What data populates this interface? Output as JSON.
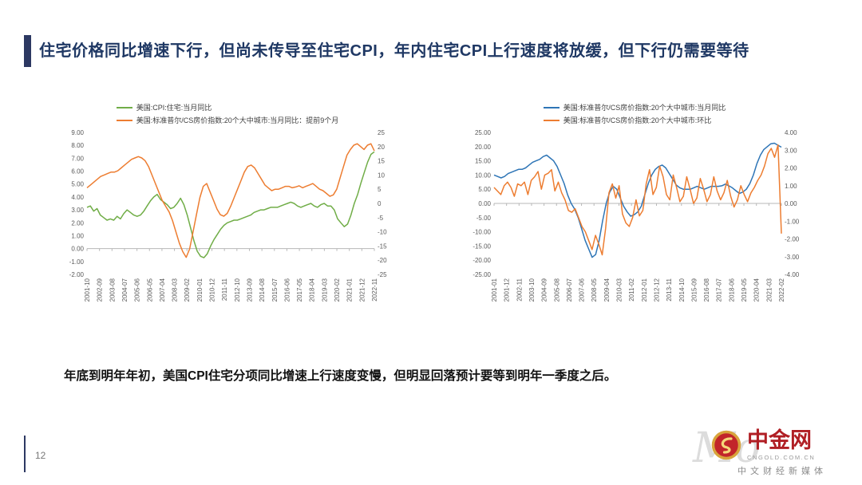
{
  "title": "住宅价格同比增速下行，但尚未传导至住宅CPI，年内住宅CPI上行速度将放缓，但下行仍需要等待",
  "note": "年底到明年年初，美国CPI住宅分项同比增速上行速度变慢，但明显回落预计要等到明年一季度之后。",
  "page_number": "12",
  "logo": {
    "watermark": "Mo",
    "brand": "中金网",
    "domain": "CNGOLD.COM.CN",
    "tagline": "中文财经新媒体"
  },
  "colors": {
    "accent_navy": "#2C3862",
    "title_blue": "#1F3864",
    "green": "#70AD47",
    "orange": "#ED7D31",
    "blue": "#2E75B6",
    "brand_red": "#B01E24",
    "logo_gold": "#D8A43C"
  },
  "chart_data": [
    {
      "type": "line",
      "title": "",
      "legend": [
        {
          "label": "美国:CPI:住宅:当月同比",
          "color": "#70AD47",
          "axis": "left"
        },
        {
          "label": "美国:标准普尔/CS房价指数:20个大中城市:当月同比：提前9个月",
          "color": "#ED7D31",
          "axis": "right"
        }
      ],
      "left_axis": {
        "min": -2,
        "max": 9,
        "ticks": [
          "9.00",
          "8.00",
          "7.00",
          "6.00",
          "5.00",
          "4.00",
          "3.00",
          "2.00",
          "1.00",
          "0.00",
          "-1.00",
          "-2.00"
        ]
      },
      "right_axis": {
        "min": -25,
        "max": 25,
        "ticks": [
          "25",
          "20",
          "15",
          "10",
          "5",
          "0",
          "-5",
          "-10",
          "-15",
          "-20",
          "-25"
        ]
      },
      "x_labels": [
        "2001-10",
        "2002-09",
        "2003-08",
        "2004-07",
        "2005-06",
        "2006-05",
        "2007-04",
        "2008-03",
        "2009-02",
        "2010-01",
        "2010-12",
        "2011-11",
        "2012-10",
        "2013-09",
        "2014-08",
        "2015-07",
        "2016-06",
        "2017-05",
        "2018-04",
        "2019-03",
        "2020-02",
        "2021-01",
        "2021-12",
        "2022-11"
      ],
      "series": [
        {
          "name": "美国:CPI:住宅:当月同比",
          "axis": "left",
          "color": "#70AD47",
          "values": [
            3.2,
            3.3,
            2.9,
            3.1,
            2.6,
            2.4,
            2.2,
            2.3,
            2.2,
            2.5,
            2.3,
            2.7,
            3.0,
            2.8,
            2.6,
            2.5,
            2.6,
            2.9,
            3.3,
            3.7,
            4.0,
            4.2,
            3.8,
            3.6,
            3.4,
            3.1,
            3.2,
            3.5,
            3.9,
            3.4,
            2.6,
            1.6,
            0.6,
            -0.2,
            -0.6,
            -0.7,
            -0.4,
            0.2,
            0.7,
            1.1,
            1.5,
            1.8,
            2.0,
            2.1,
            2.2,
            2.2,
            2.3,
            2.4,
            2.5,
            2.6,
            2.8,
            2.9,
            3.0,
            3.0,
            3.1,
            3.2,
            3.2,
            3.2,
            3.3,
            3.4,
            3.5,
            3.6,
            3.5,
            3.3,
            3.2,
            3.3,
            3.4,
            3.5,
            3.3,
            3.2,
            3.4,
            3.5,
            3.3,
            3.3,
            3.0,
            2.3,
            2.0,
            1.7,
            1.9,
            2.6,
            3.5,
            4.2,
            5.1,
            5.9,
            6.7,
            7.3,
            7.5
          ]
        },
        {
          "name": "美国:标准普尔/CS房价指数:20个大中城市:当月同比：提前9个月",
          "axis": "right",
          "color": "#ED7D31",
          "values": [
            5.5,
            6.5,
            7.5,
            8.5,
            9.5,
            10,
            10.5,
            11,
            11,
            11.5,
            12.5,
            13.5,
            14.5,
            15.5,
            16,
            16.5,
            16,
            15,
            13,
            10,
            7,
            4,
            1,
            -1,
            -3,
            -6,
            -10,
            -14,
            -17,
            -19,
            -16,
            -10,
            -4,
            2,
            6,
            7,
            4,
            1,
            -2,
            -4,
            -4.5,
            -3.5,
            -1,
            2,
            5,
            8,
            11,
            13,
            13.5,
            12.5,
            10.5,
            8.5,
            6.5,
            5.5,
            4.5,
            5,
            5,
            5.5,
            6,
            6,
            5.5,
            5.8,
            6.2,
            5.5,
            6,
            6.5,
            7,
            6,
            5,
            4.5,
            3.5,
            2.5,
            3,
            5,
            9,
            13,
            17,
            19,
            20.5,
            21,
            20,
            19,
            20.5,
            21,
            18.5
          ]
        }
      ]
    },
    {
      "type": "line",
      "title": "",
      "legend": [
        {
          "label": "美国:标准普尔/CS房价指数:20个大中城市:当月同比",
          "color": "#2E75B6",
          "axis": "left"
        },
        {
          "label": "美国:标准普尔/CS房价指数:20个大中城市:环比",
          "color": "#ED7D31",
          "axis": "right"
        }
      ],
      "left_axis": {
        "min": -25,
        "max": 25,
        "ticks": [
          "25.00",
          "20.00",
          "15.00",
          "10.00",
          "5.00",
          "0.00",
          "-5.00",
          "-10.00",
          "-15.00",
          "-20.00",
          "-25.00"
        ]
      },
      "right_axis": {
        "min": -4,
        "max": 4,
        "ticks": [
          "4.00",
          "3.00",
          "2.00",
          "1.00",
          "0.00",
          "-1.00",
          "-2.00",
          "-3.00",
          "-4.00"
        ]
      },
      "x_labels": [
        "2001-01",
        "2001-12",
        "2002-11",
        "2003-10",
        "2004-09",
        "2005-08",
        "2006-07",
        "2007-06",
        "2008-05",
        "2009-04",
        "2010-03",
        "2011-02",
        "2012-01",
        "2012-12",
        "2013-11",
        "2014-10",
        "2015-09",
        "2016-08",
        "2017-07",
        "2018-06",
        "2019-05",
        "2020-04",
        "2021-03",
        "2022-02"
      ],
      "series": [
        {
          "name": "美国:标准普尔/CS房价指数:20个大中城市:当月同比",
          "axis": "left",
          "color": "#2E75B6",
          "values": [
            10,
            9.5,
            9,
            9.5,
            10.5,
            11,
            11.5,
            12,
            12,
            12.5,
            13.5,
            14.5,
            15,
            15.5,
            16.5,
            17,
            16,
            15,
            13,
            10,
            7,
            3,
            0,
            -2,
            -5,
            -9,
            -13,
            -16,
            -19,
            -18,
            -13,
            -6,
            0,
            4,
            6,
            5,
            2,
            -1,
            -3,
            -4.5,
            -4,
            -3,
            -1,
            3,
            7,
            10,
            12,
            13,
            13.5,
            12.5,
            10.5,
            8.5,
            6.5,
            5.5,
            5,
            5,
            5,
            5.5,
            6,
            5.5,
            5,
            5.5,
            6,
            6,
            6,
            6.2,
            6.8,
            6.2,
            5.5,
            4.5,
            3.5,
            4,
            5,
            7,
            10,
            14,
            17,
            19,
            20,
            21,
            21.2,
            20.5,
            19.8
          ]
        },
        {
          "name": "美国:标准普尔/CS房价指数:20个大中城市:环比",
          "axis": "right",
          "color": "#ED7D31",
          "values": [
            0.9,
            0.7,
            0.5,
            1.0,
            1.2,
            0.9,
            0.4,
            1.1,
            1.0,
            1.2,
            0.5,
            1.3,
            1.5,
            1.8,
            0.8,
            1.6,
            1.7,
            1.9,
            0.7,
            1.2,
            0.6,
            0.2,
            -0.4,
            -0.5,
            -0.3,
            -0.8,
            -1.3,
            -1.6,
            -2.1,
            -2.6,
            -1.8,
            -2.3,
            -2.9,
            -1.4,
            0.6,
            1.1,
            0.3,
            1.0,
            -0.6,
            -1.1,
            -1.3,
            -0.8,
            0.2,
            -0.7,
            -0.4,
            1.1,
            1.9,
            0.5,
            0.9,
            2.1,
            1.5,
            0.5,
            0.2,
            1.6,
            0.9,
            0.1,
            0.4,
            1.5,
            0.8,
            0.0,
            0.3,
            1.4,
            0.8,
            0.1,
            0.5,
            1.5,
            0.7,
            0.2,
            0.6,
            1.3,
            0.4,
            -0.2,
            0.2,
            1.0,
            0.5,
            0.1,
            0.6,
            0.9,
            1.3,
            1.6,
            2.1,
            2.8,
            3.1,
            2.6,
            3.3,
            -1.7
          ]
        }
      ]
    }
  ]
}
